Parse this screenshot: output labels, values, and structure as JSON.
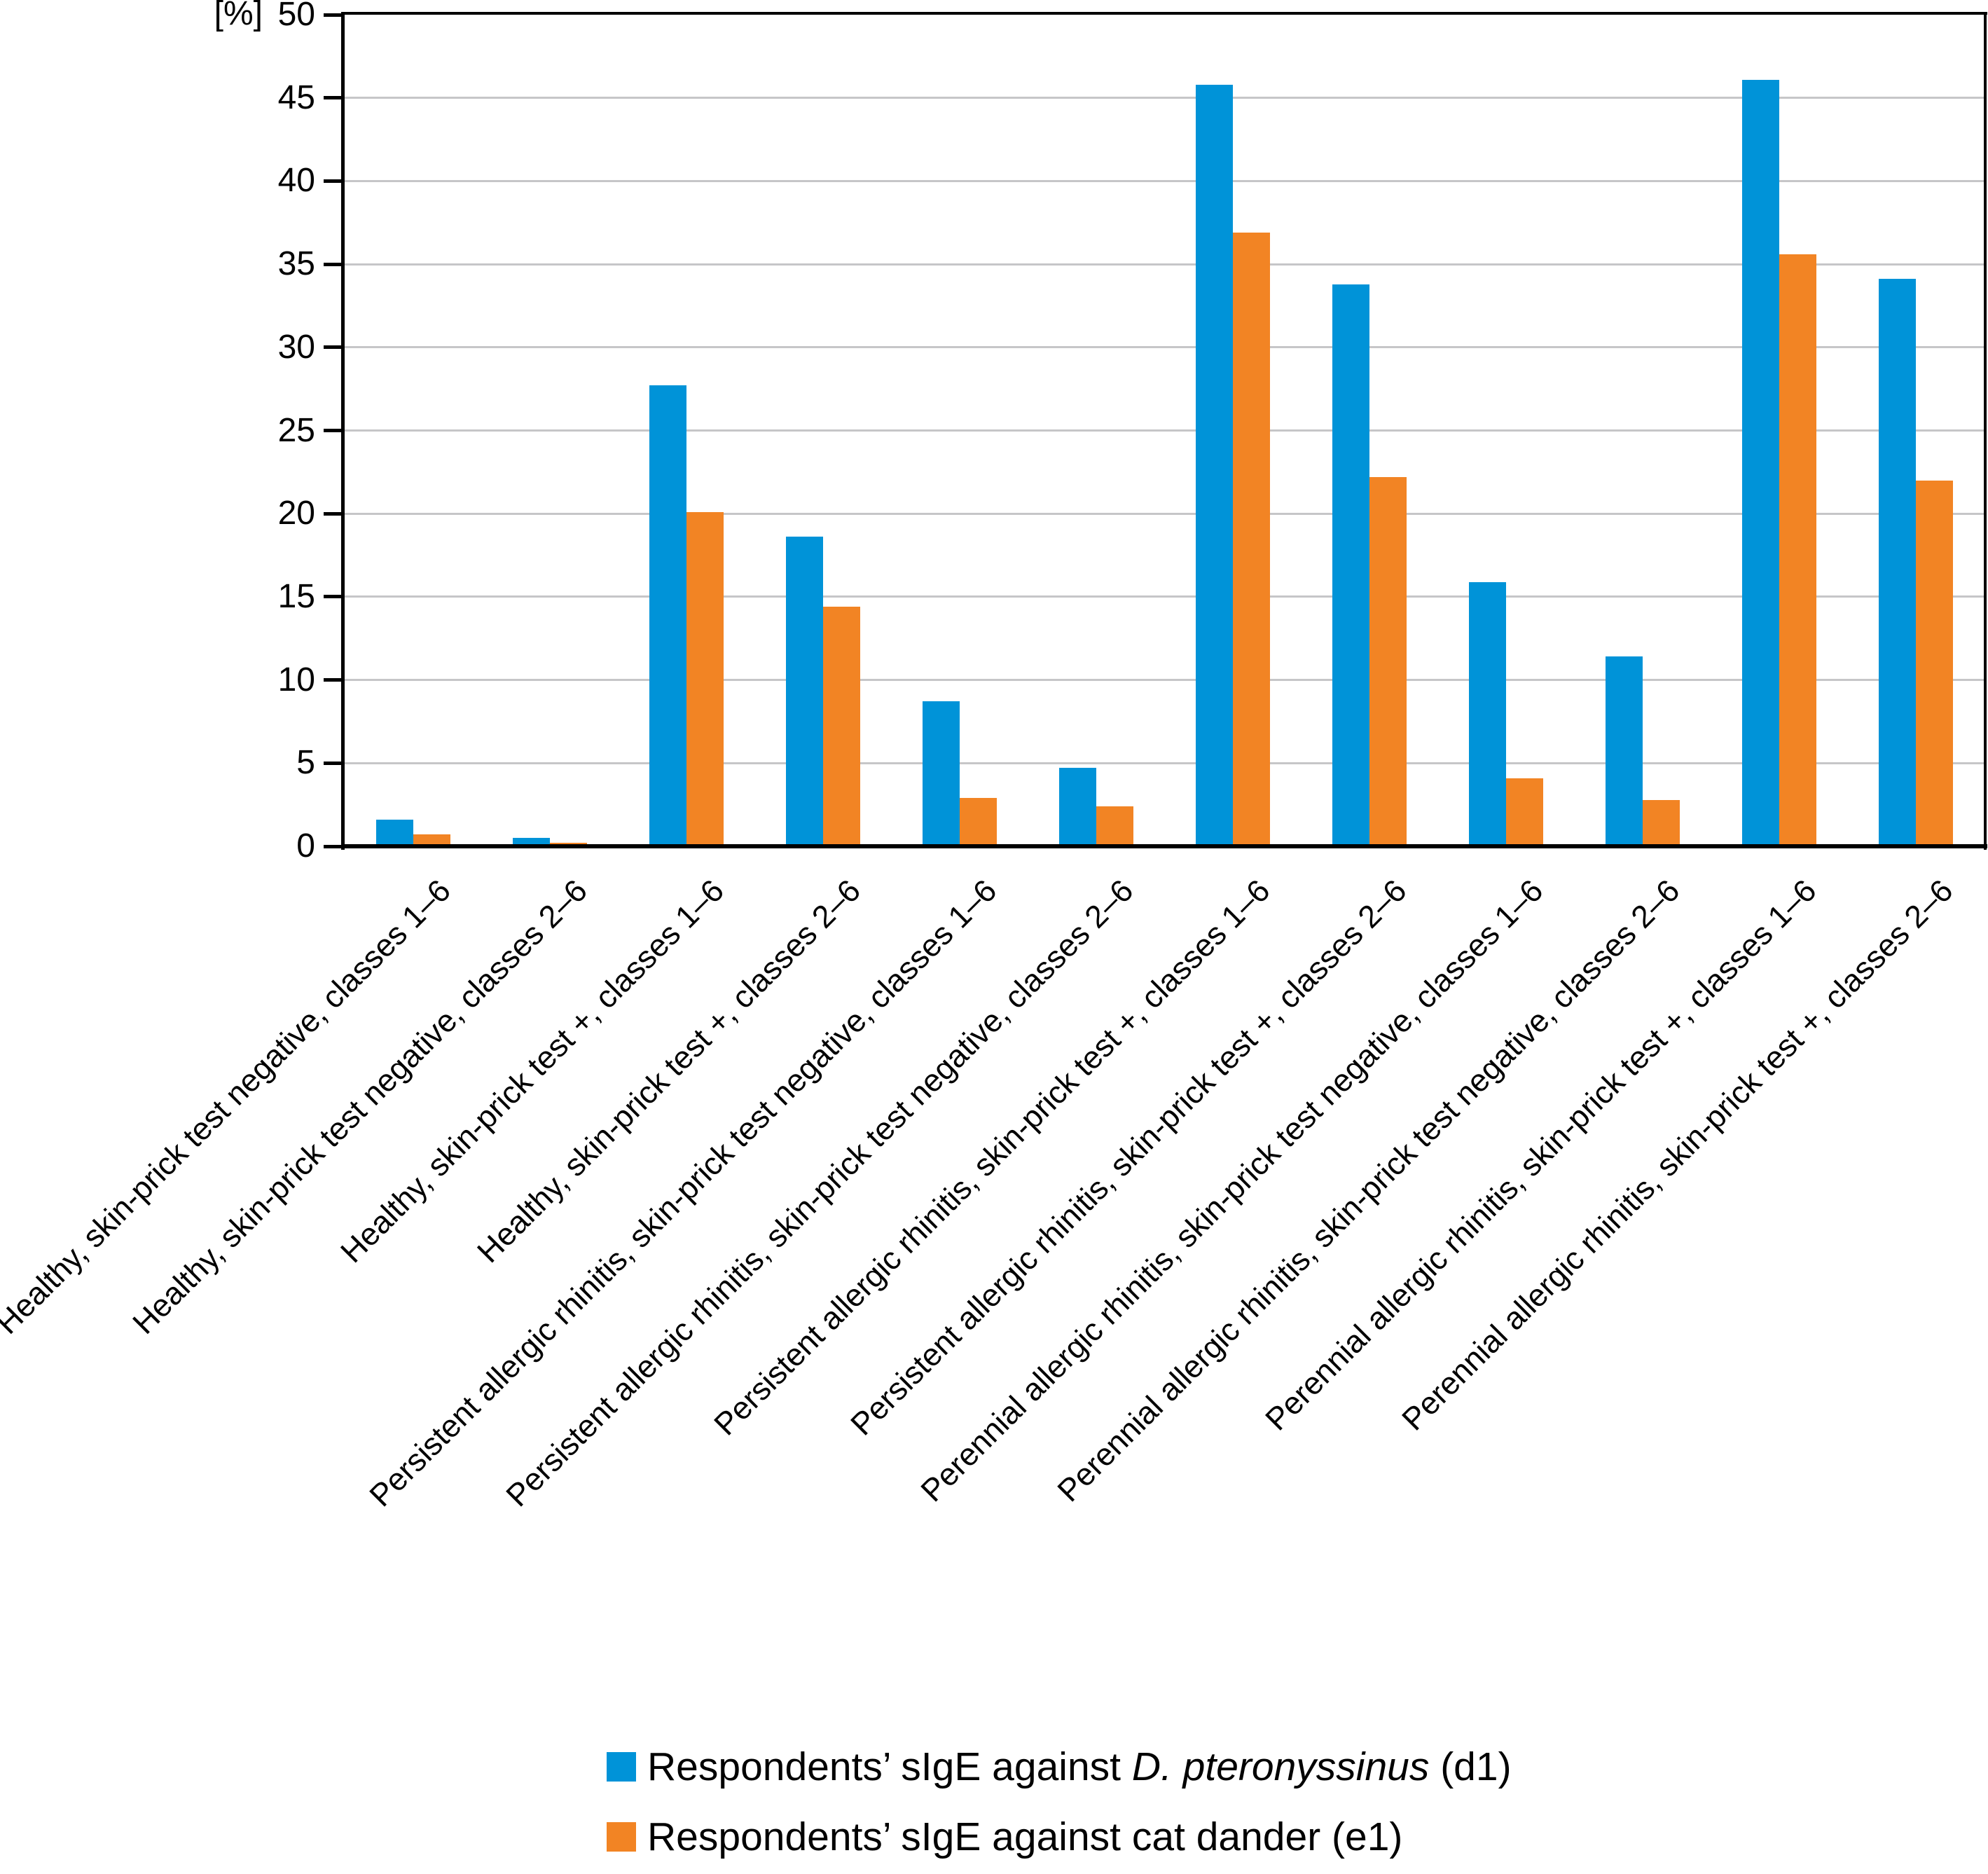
{
  "unit_label": "[%]",
  "colors": {
    "series1": "#0093d8",
    "series2": "#f28424",
    "gridline": "#c6c6c8",
    "axis": "#000000"
  },
  "y_axis": {
    "tick_labels": [
      "0",
      "5",
      "10",
      "15",
      "20",
      "25",
      "30",
      "35",
      "40",
      "45",
      "50"
    ]
  },
  "chart_data": {
    "type": "bar",
    "title": "",
    "xlabel": "",
    "ylabel": "[%]",
    "ylim": [
      0,
      50
    ],
    "ytick_step": 5,
    "grid": true,
    "legend_position": "bottom",
    "categories": [
      "Healthy, skin-prick test negative, classes 1–6",
      "Healthy, skin-prick test negative, classes 2–6",
      "Healthy, skin-prick test +, classes 1–6",
      "Healthy, skin-prick test +, classes 2–6",
      "Persistent allergic rhinitis, skin-prick test negative, classes 1–6",
      "Persistent allergic rhinitis, skin-prick test negative, classes 2–6",
      "Persistent allergic rhinitis, skin-prick test +, classes 1–6",
      "Persistent allergic rhinitis, skin-prick test +, classes 2–6",
      "Perennial allergic rhinitis, skin-prick test negative, classes 1–6",
      "Perennial allergic rhinitis, skin-prick test negative, classes 2–6",
      "Perennial allergic rhinitis, skin-prick test +, classes 1–6",
      "Perennial allergic rhinitis, skin-prick test +, classes 2–6"
    ],
    "series": [
      {
        "name": "Respondents’ sIgE against D. pteronyssinus (d1)",
        "color": "#0093d8",
        "values": [
          1.6,
          0.5,
          27.7,
          18.6,
          8.7,
          4.7,
          45.8,
          33.8,
          15.9,
          11.4,
          46.1,
          34.1
        ]
      },
      {
        "name": "Respondents’ sIgE against cat dander (e1)",
        "color": "#f28424",
        "values": [
          0.7,
          0.2,
          20.1,
          14.4,
          2.9,
          2.4,
          36.9,
          22.2,
          4.1,
          2.8,
          35.6,
          22.0
        ]
      }
    ]
  },
  "legend": {
    "items": [
      {
        "label_prefix": "Respondents’ sIgE against ",
        "label_italic": "D. pteronyssinus",
        "label_suffix": " (d1)",
        "color": "#0093d8"
      },
      {
        "label_prefix": "Respondents’ sIgE against cat dander (e1)",
        "label_italic": "",
        "label_suffix": "",
        "color": "#f28424"
      }
    ]
  }
}
